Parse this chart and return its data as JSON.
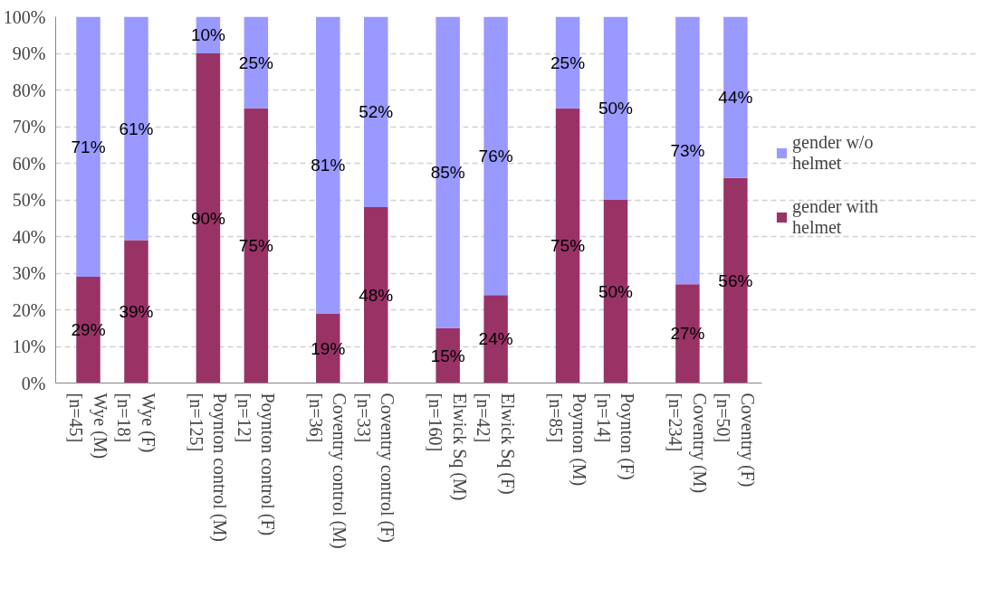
{
  "chart_data": {
    "type": "bar",
    "stacked": true,
    "categories": [
      "Wye (M)\n[n=45]",
      "Wye (F)\n[n=18]",
      "Poynton control (M)\n[n=125]",
      "Poynton control (F)\n[n=12]",
      "Coventry control (M)\n[n=36]",
      "Coventry control (F)\n[n=33]",
      "Elwick Sq (M)\n[n=160]",
      "Elwick Sq (F)\n[n=42]",
      "Poynton (M)\n[n=85]",
      "Poynton (F)\n[n=14]",
      "Coventry (M)\n[n=234]",
      "Coventry (F)\n[n=50]"
    ],
    "series": [
      {
        "name": "gender with helmet",
        "color": "#993366",
        "values": [
          29,
          39,
          90,
          75,
          19,
          48,
          15,
          24,
          75,
          50,
          27,
          56
        ],
        "value_labels": [
          "29%",
          "39%",
          "90%",
          "75%",
          "19%",
          "48%",
          "15%",
          "24%",
          "75%",
          "50%",
          "27%",
          "56%"
        ]
      },
      {
        "name": "gender w/o helmet",
        "color": "#9999ff",
        "values": [
          71,
          61,
          10,
          25,
          81,
          52,
          85,
          76,
          25,
          50,
          73,
          44
        ],
        "value_labels": [
          "71%",
          "61%",
          "10%",
          "25%",
          "81%",
          "52%",
          "85%",
          "76%",
          "25%",
          "50%",
          "73%",
          "44%"
        ]
      }
    ],
    "ylim": [
      0,
      100
    ],
    "yticks": [
      {
        "value": 0,
        "label": "0%"
      },
      {
        "value": 10,
        "label": "10%"
      },
      {
        "value": 20,
        "label": "20%"
      },
      {
        "value": 30,
        "label": "30%"
      },
      {
        "value": 40,
        "label": "40%"
      },
      {
        "value": 50,
        "label": "50%"
      },
      {
        "value": 60,
        "label": "60%"
      },
      {
        "value": 70,
        "label": "70%"
      },
      {
        "value": 80,
        "label": "80%"
      },
      {
        "value": 90,
        "label": "90%"
      },
      {
        "value": 100,
        "label": "100%"
      }
    ],
    "grid": "y",
    "legend": "right"
  }
}
